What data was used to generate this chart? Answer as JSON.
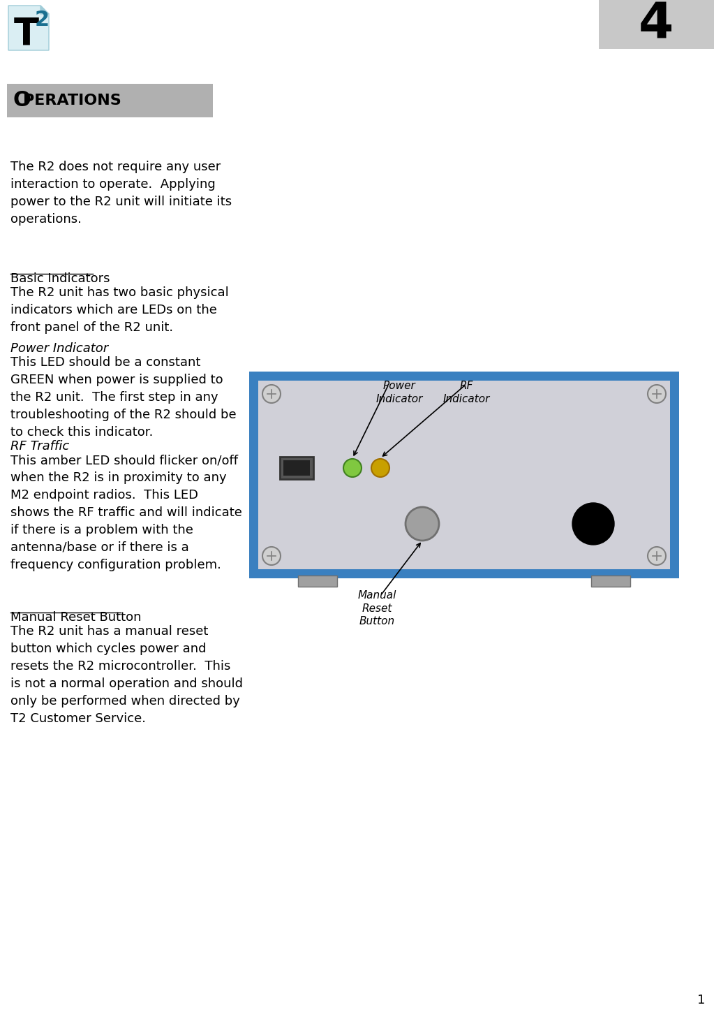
{
  "page_number": "4",
  "page_number_bg": "#c8c8c8",
  "title_bg": "#b0b0b0",
  "body_text_1": "The R2 does not require any user\ninteraction to operate.  Applying\npower to the R2 unit will initiate its\noperations.",
  "section1_heading": "Basic Indicators",
  "section1_body": "The R2 unit has two basic physical\nindicators which are LEDs on the\nfront panel of the R2 unit.",
  "subsec1_heading": "Power Indicator",
  "subsec1_body": "This LED should be a constant\nGREEN when power is supplied to\nthe R2 unit.  The first step in any\ntroubleshooting of the R2 should be\nto check this indicator.",
  "subsec2_heading": "RF Traffic",
  "subsec2_body": "This amber LED should flicker on/off\nwhen the R2 is in proximity to any\nM2 endpoint radios.  This LED\nshows the RF traffic and will indicate\nif there is a problem with the\nantenna/base or if there is a\nfrequency configuration problem.",
  "section2_heading": "Manual Reset Button",
  "section2_body": "The R2 unit has a manual reset\nbutton which cycles power and\nresets the R2 microcontroller.  This\nis not a normal operation and should\nonly be performed when directed by\nT2 Customer Service.",
  "footer_number": "1",
  "device_box_color": "#d0d0d8",
  "device_border_color": "#3a80c0",
  "led_green_color": "#80c840",
  "led_amber_color": "#c8a000",
  "reset_button_color": "#a0a0a0",
  "screw_color": "#d0d0d0",
  "screw_border": "#808080",
  "label_power": "Power\nIndicator",
  "label_rf": "RF\nIndicator",
  "label_reset": "Manual\nReset\nButton",
  "teal_color": "#1a7090",
  "logo_black": "#000000"
}
